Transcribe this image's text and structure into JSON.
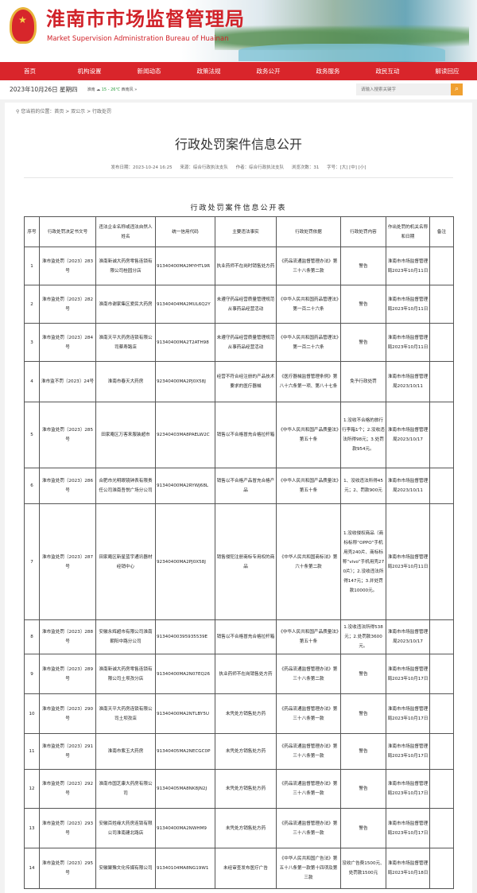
{
  "header": {
    "title_cn": "淮南市市场监督管理局",
    "title_en": "Market Supervision Administration Bureau of Huainan"
  },
  "nav": [
    "首页",
    "机构设置",
    "新闻动态",
    "政策法规",
    "政务公开",
    "政务服务",
    "政民互动",
    "解读回应"
  ],
  "datebar": {
    "date": "2023年10月26日  星期四",
    "weather": "淮南 ☁ ",
    "temp": "15 - 26℃",
    "wind": " 西南风 »",
    "search_placeholder": "请输入搜索关键字",
    "search_icon": "magnifier"
  },
  "breadcrumb": {
    "label": "您当前的位置：",
    "path": "首页 > 双公示 > 行政处罚"
  },
  "article": {
    "title": "行政处罚案件信息公开",
    "date": "发布日期：2023-10-24 16:25",
    "source": "来源：综合行政执法支队",
    "author": "作者：综合行政执法支队",
    "views": "浏览次数：31",
    "fontsize": "字号：[大] [中] [小]"
  },
  "table": {
    "title": "行政处罚案件信息公开表",
    "headers": [
      "序号",
      "行政处罚决定书文号",
      "违法企业名称或违法自然人姓名",
      "统一信用代码",
      "主要违法事实",
      "行政处罚依据",
      "行政处罚内容",
      "作出处罚的机关名称和日期",
      "备注"
    ],
    "rows": [
      [
        "1",
        "淮市监处罚〔2023〕283号",
        "淮南新诚大药房零售连锁有限公司桂园分店",
        "91340400MA2MYHTL9R",
        "执业药师不在岗时销售处方药",
        "《药品流通监督管理办法》第三十八条第二款",
        "警告",
        "淮南市市场监督管理局2023年10月11日",
        ""
      ],
      [
        "2",
        "淮市监处罚〔2023〕282号",
        "淮南市谢家集区爱民大药房",
        "91340404MA2MUL6Q2Y",
        "未遵守药品经营质量管理规范从事药品经营活动",
        "《中华人民共和国药品管理法》第一百二十六条",
        "警告",
        "淮南市市场监督管理局2023年10月11日",
        ""
      ],
      [
        "3",
        "淮市监处罚〔2023〕284号",
        "淮南天平大药房连锁有限公司蔡寿路店",
        "91340400MA2T2ATH98",
        "未遵守药品经营质量管理规范从事药品经营活动",
        "《中华人民共和国药品管理法》第一百二十六条",
        "警告",
        "淮南市市场监督管理局2023年10月11日",
        ""
      ],
      [
        "4",
        "淮市监不罚〔2023〕24号",
        "淮南市春天大药房",
        "92340400MA2PJ0X58J",
        "经营不符合经注册的产品技术要求的医疗器械",
        "《医疗器械监督管理条例》第八十六条第一项、第八十七条",
        "免予行政处罚",
        "淮南市市场监督管理局2023/10/11",
        ""
      ],
      [
        "5",
        "淮市监处罚〔2023〕285号",
        "田家庵区万客来服装超市",
        "92340403MA8PAELW2C",
        "销售以不合格冒充合格拉杆箱",
        "《中华人民共和国产品质量法》第五十条",
        "1.没收不合格的旅行行李箱1个；2.没收违法所得98元；3.处罚款954元。",
        "淮南市市场监督管理局2023/10/17",
        ""
      ],
      [
        "6",
        "淮市监处罚〔2023〕286号",
        "合肥市光明眼镜钟表有限责任公司淮南吾悦广场分公司",
        "91340400MA2RYWJ68L",
        "销售以不合格产品冒充合格产品",
        "《中华人民共和国产品质量法》第五十条",
        "1、没收违法所得45元；2、罚款900元",
        "淮南市市场监督管理局2023/10/11",
        ""
      ],
      [
        "7",
        "淮市监处罚〔2023〕287号",
        "田家庵区新星蓝宇通讯器材经销中心",
        "92340400MA2PJ0X58J",
        "销售侵犯注册商标专用权的商品",
        "《中华人民共和国商标法》第六十条第二款",
        "1.没收侵权商品（商标标称“OPPO”手机用壳240片、商标标称“vivo”手机用壳270片）；2.没收违法所得147元；3.并处罚款10000元。",
        "淮南市市场监督管理局2023年10月11日",
        ""
      ],
      [
        "8",
        "淮市监处罚〔2023〕288号",
        "安徽永辉超市有限公司淮南朝阳中路分公司",
        "91340400395935539E",
        "销售以不合格冒充合格拉杆箱",
        "《中华人民共和国产品质量法》第五十条",
        "1.没收违法所得538元；2.处罚款3600元。",
        "淮南市市场监督管理局2023/10/17",
        ""
      ],
      [
        "9",
        "淮市监处罚〔2023〕289号",
        "淮南新诚大药房零售连锁有限公司土坝孜分店",
        "91340400MA2N07EQ26",
        "执业药师不在岗销售处方药",
        "《药品流通监督管理办法》第三十八条第二款",
        "警告",
        "淮南市市场监督管理局2023年10月17日",
        ""
      ],
      [
        "10",
        "淮市监处罚〔2023〕290号",
        "淮南天平大药房连锁有限公司土坝孜店",
        "91340400MA2NTLBY5U",
        "未凭处方销售处方药",
        "《药品流通监督管理办法》第三十八条第一款",
        "警告",
        "淮南市市场监督管理局2023年10月17日",
        ""
      ],
      [
        "11",
        "淮市监处罚〔2023〕291号",
        "淮南市紫玉大药房",
        "91340405MA2NECGC0P",
        "未凭处方销售处方药",
        "《药品流通监督管理办法》第三十八条第一款",
        "警告",
        "淮南市市场监督管理局2023年10月17日",
        ""
      ],
      [
        "12",
        "淮市监处罚〔2023〕292号",
        "淮南市国芝康大药房有限公司",
        "91340405MA8NK8JN2J",
        "未凭处方销售处方药",
        "《药品流通监督管理办法》第三十八条第一款",
        "警告",
        "淮南市市场监督管理局2023年10月17日",
        ""
      ],
      [
        "13",
        "淮市监处罚〔2023〕293号",
        "安徽百姓缘大药房连锁有限公司淮南建北路店",
        "91340400MA2NWHM9",
        "未凭处方销售处方药",
        "《药品流通监督管理办法》第三十八条第一款",
        "警告",
        "淮南市市场监督管理局2023年10月17日",
        ""
      ],
      [
        "14",
        "淮市监处罚〔2023〕295号",
        "安徽聚豫文化传媒有限公司",
        "91340104MA8NG19W1",
        "未经审查发布医疗广告",
        "《中华人民共和国广告法》第五十八条第一款第十四项及第三款",
        "没收广告费1500元、处罚款1500元",
        "淮南市市场监督管理局2023年10月18日",
        ""
      ]
    ]
  },
  "colors": {
    "brand_red": "#d9252b",
    "search_button": "#f0a030"
  }
}
